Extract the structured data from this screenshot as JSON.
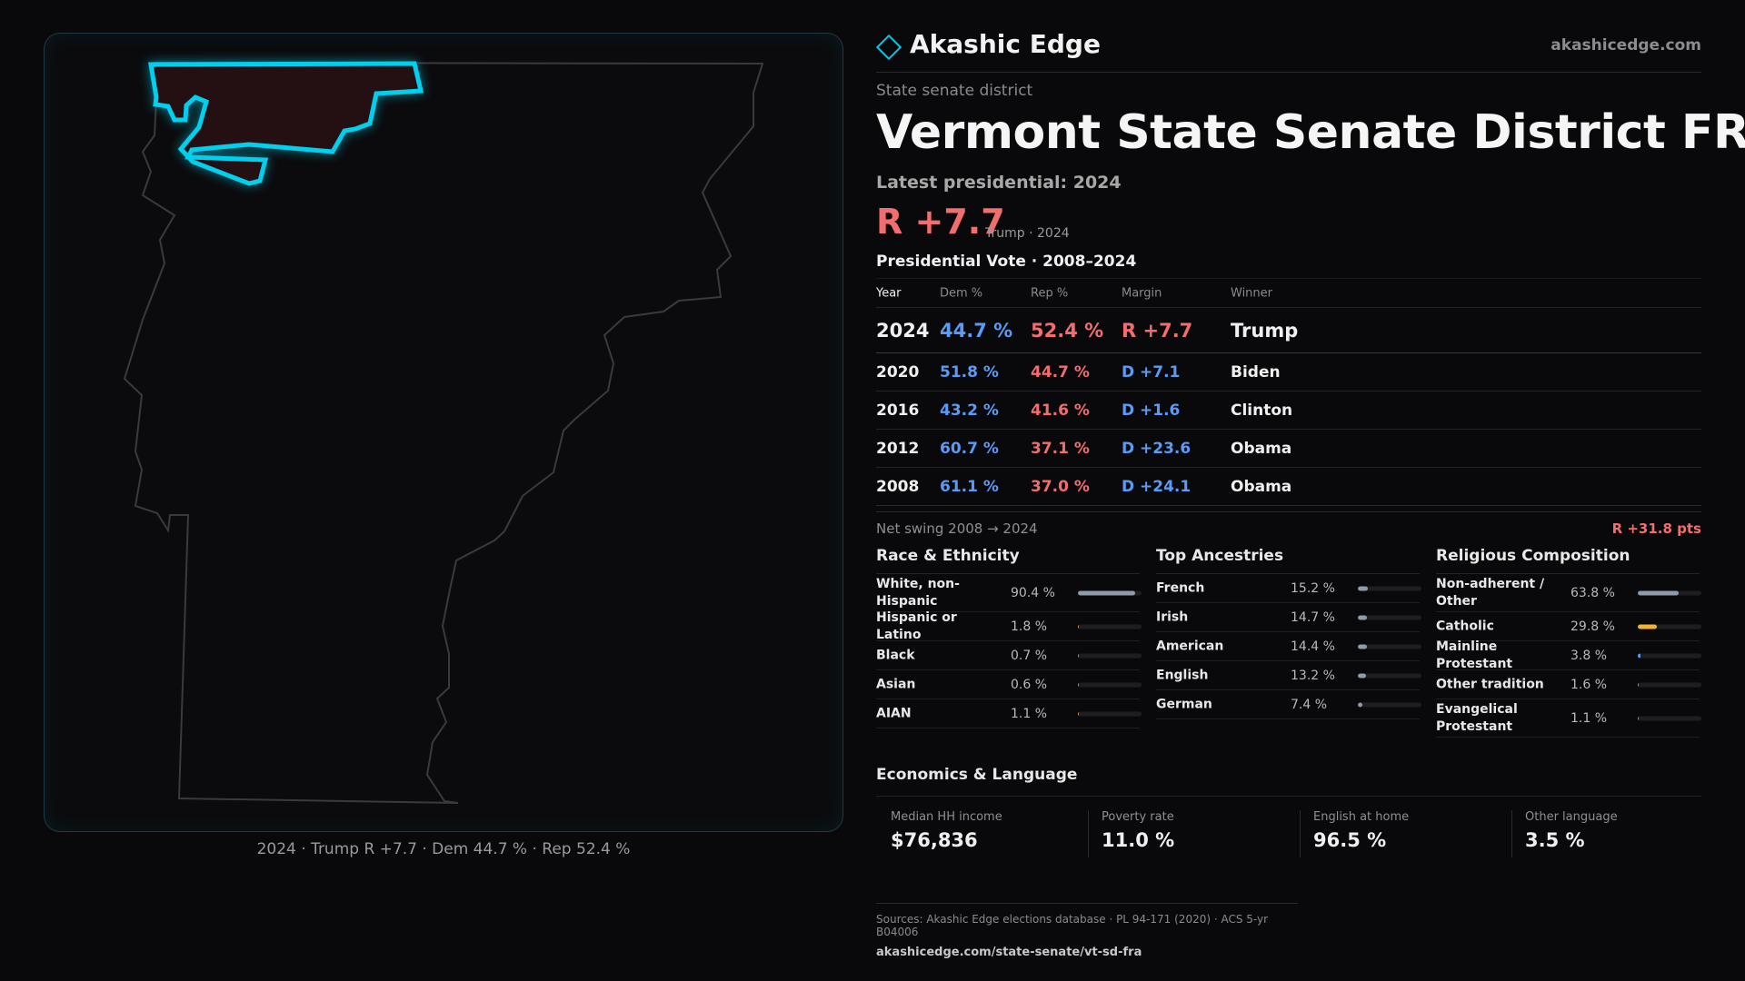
{
  "brand": {
    "name": "Akashic Edge",
    "url": "akashicedge.com"
  },
  "district": {
    "kicker": "State senate district",
    "title": "Vermont State Senate District FRA",
    "latest_label": "Latest presidential: 2024",
    "margin": "R +7.7",
    "margin_sub": "Trump · 2024"
  },
  "vote_table": {
    "heading": "Presidential Vote · 2008–2024",
    "columns": [
      "Year",
      "Dem %",
      "Rep %",
      "Margin",
      "Winner"
    ],
    "rows": [
      {
        "year": "2024",
        "dem": "44.7 %",
        "rep": "52.4 %",
        "margin": "R +7.7",
        "winner": "Trump"
      },
      {
        "year": "2020",
        "dem": "51.8 %",
        "rep": "44.7 %",
        "margin": "D +7.1",
        "winner": "Biden"
      },
      {
        "year": "2016",
        "dem": "43.2 %",
        "rep": "41.6 %",
        "margin": "D +1.6",
        "winner": "Clinton"
      },
      {
        "year": "2012",
        "dem": "60.7 %",
        "rep": "37.1 %",
        "margin": "D +23.6",
        "winner": "Obama"
      },
      {
        "year": "2008",
        "dem": "61.1 %",
        "rep": "37.0 %",
        "margin": "D +24.1",
        "winner": "Obama"
      }
    ],
    "swing_label": "Net swing 2008 → 2024",
    "swing_value": "R +31.8 pts"
  },
  "race": {
    "title": "Race & Ethnicity",
    "items": [
      {
        "label": "White, non-Hispanic",
        "pct": "90.4 %",
        "value": 90.4,
        "color": "#8f9aab"
      },
      {
        "label": "Hispanic or Latino",
        "pct": "1.8 %",
        "value": 1.8,
        "color": "#e8913c"
      },
      {
        "label": "Black",
        "pct": "0.7 %",
        "value": 0.7,
        "color": "#8f9aab"
      },
      {
        "label": "Asian",
        "pct": "0.6 %",
        "value": 0.6,
        "color": "#8f9aab"
      },
      {
        "label": "AIAN",
        "pct": "1.1 %",
        "value": 1.1,
        "color": "#e8913c"
      }
    ]
  },
  "ancestry": {
    "title": "Top Ancestries",
    "items": [
      {
        "label": "French",
        "pct": "15.2 %",
        "value": 15.2,
        "color": "#8f9aab"
      },
      {
        "label": "Irish",
        "pct": "14.7 %",
        "value": 14.7,
        "color": "#8f9aab"
      },
      {
        "label": "American",
        "pct": "14.4 %",
        "value": 14.4,
        "color": "#8f9aab"
      },
      {
        "label": "English",
        "pct": "13.2 %",
        "value": 13.2,
        "color": "#8f9aab"
      },
      {
        "label": "German",
        "pct": "7.4 %",
        "value": 7.4,
        "color": "#8f9aab"
      }
    ]
  },
  "religion": {
    "title": "Religious Composition",
    "items": [
      {
        "label": "Non-adherent / Other",
        "pct": "63.8 %",
        "value": 63.8,
        "color": "#8f9aab"
      },
      {
        "label": "Catholic",
        "pct": "29.8 %",
        "value": 29.8,
        "color": "#f2b233"
      },
      {
        "label": "Mainline Protestant",
        "pct": "3.8 %",
        "value": 3.8,
        "color": "#5b9af5"
      },
      {
        "label": "Other tradition",
        "pct": "1.6 %",
        "value": 1.6,
        "color": "#8f9aab"
      },
      {
        "label": "Evangelical Protestant",
        "pct": "1.1 %",
        "value": 1.1,
        "color": "#8f9aab"
      }
    ]
  },
  "economics": {
    "title": "Economics & Language",
    "cells": [
      {
        "label": "Median HH income",
        "value": "$76,836"
      },
      {
        "label": "Poverty rate",
        "value": "11.0 %"
      },
      {
        "label": "English at home",
        "value": "96.5 %"
      },
      {
        "label": "Other language",
        "value": "3.5 %"
      }
    ]
  },
  "map": {
    "caption": "2024 · Trump R +7.7 · Dem 44.7 % · Rep 52.4 %",
    "state_stroke": "#3a3a3e",
    "district_stroke": "#00cfee",
    "district_fill": "#241012"
  },
  "sources": {
    "line": "Sources: Akashic Edge elections database · PL 94-171 (2020) · ACS 5-yr B04006",
    "url": "akashicedge.com/state-senate/vt-sd-fra"
  }
}
